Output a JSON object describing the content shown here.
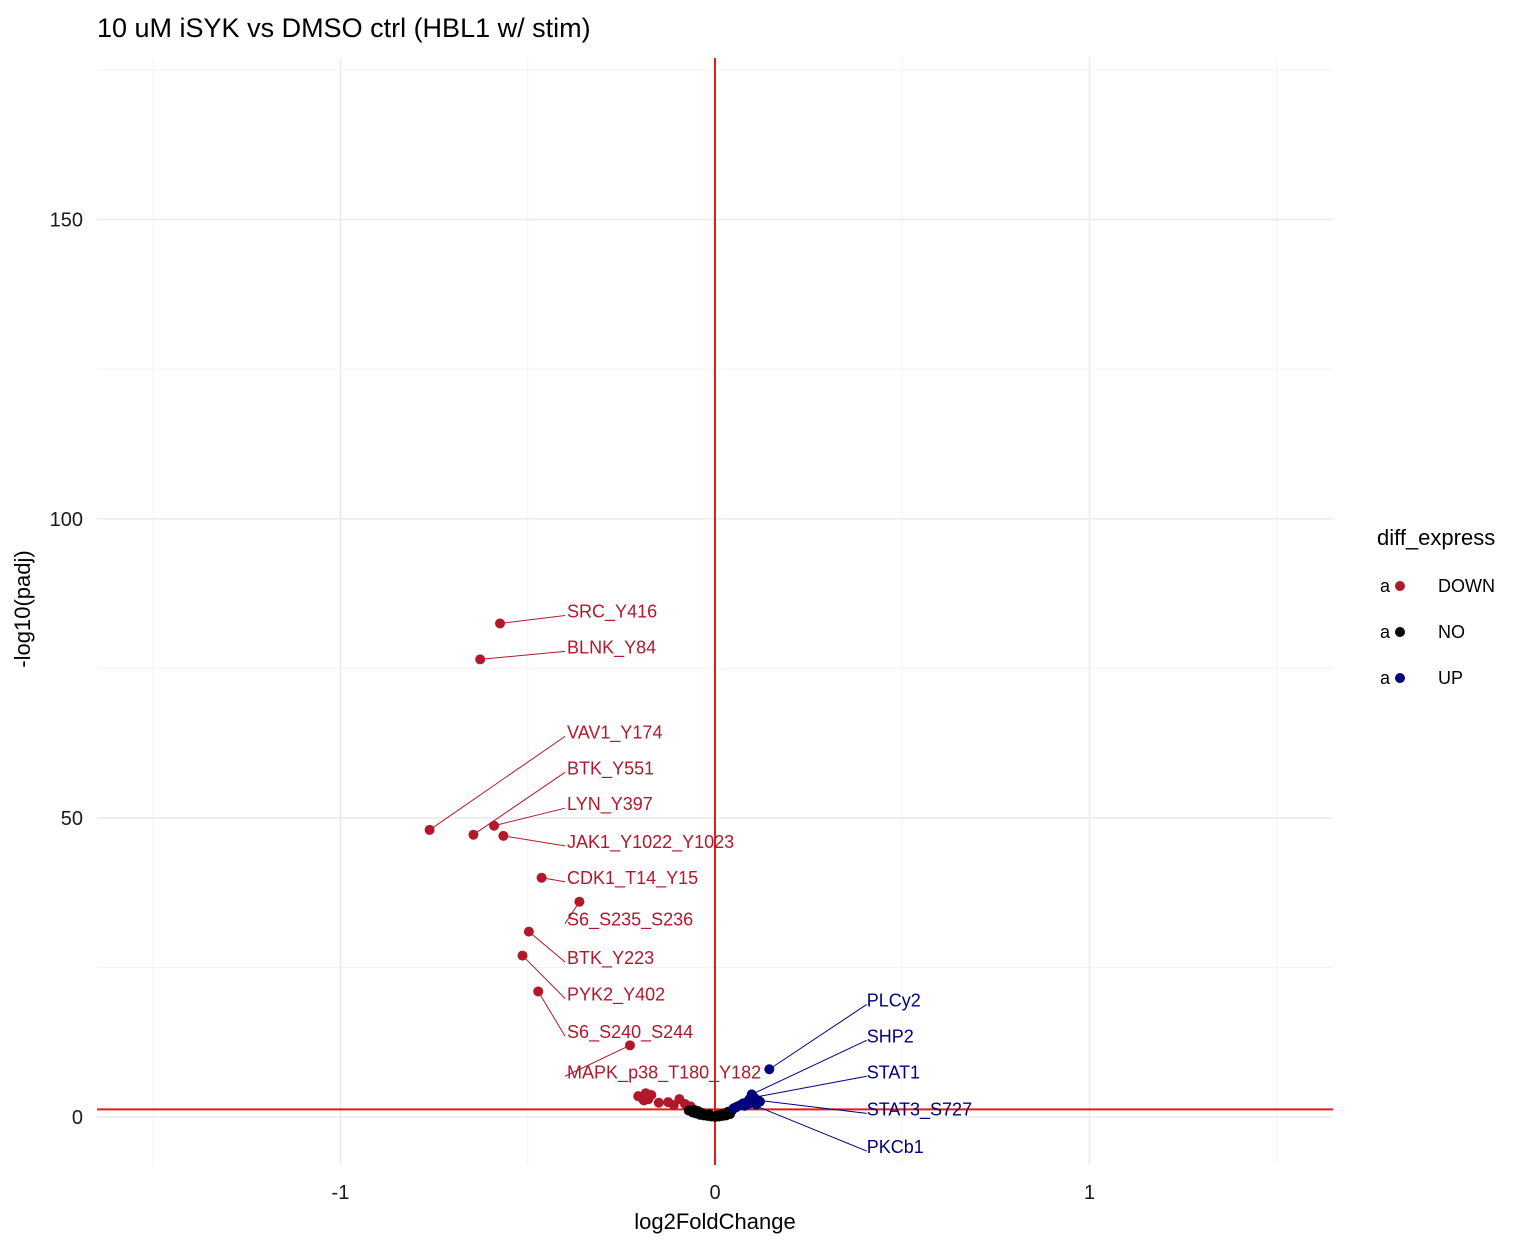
{
  "chart_data": {
    "type": "scatter",
    "title": "10 uM iSYK vs DMSO ctrl (HBL1 w/ stim)",
    "xlabel": "log2FoldChange",
    "ylabel": "-log10(padj)",
    "xlim": [
      -1.65,
      1.65
    ],
    "ylim": [
      -8,
      177
    ],
    "x_ticks": [
      -1,
      0,
      1
    ],
    "x_tick_labels": [
      "-1",
      "0",
      "1"
    ],
    "y_ticks": [
      0,
      50,
      100,
      150
    ],
    "y_tick_labels": [
      "0",
      "50",
      "100",
      "150"
    ],
    "grid": true,
    "reference_lines": {
      "vline_x": 0,
      "hline_y": 1.3,
      "color": "#e31a1c"
    },
    "legend": {
      "title": "diff_express",
      "position": "right",
      "key_glyph": "a",
      "entries": [
        {
          "label": "DOWN",
          "color": "#b2182b"
        },
        {
          "label": "NO",
          "color": "#000000"
        },
        {
          "label": "UP",
          "color": "#00007f"
        }
      ]
    },
    "series": [
      {
        "name": "DOWN",
        "color": "#b2182b",
        "points": [
          {
            "x": -0.574,
            "y": 82.5
          },
          {
            "x": -0.627,
            "y": 76.5
          },
          {
            "x": -0.762,
            "y": 48.0
          },
          {
            "x": -0.645,
            "y": 47.2
          },
          {
            "x": -0.59,
            "y": 48.7
          },
          {
            "x": -0.565,
            "y": 47.0
          },
          {
            "x": -0.463,
            "y": 40.0
          },
          {
            "x": -0.362,
            "y": 36.0
          },
          {
            "x": -0.497,
            "y": 31.0
          },
          {
            "x": -0.514,
            "y": 27.0
          },
          {
            "x": -0.472,
            "y": 21.0
          },
          {
            "x": -0.227,
            "y": 12.0
          },
          {
            "x": -0.185,
            "y": 4.0
          },
          {
            "x": -0.195,
            "y": 3.2
          },
          {
            "x": -0.178,
            "y": 3.0
          },
          {
            "x": -0.205,
            "y": 3.5
          },
          {
            "x": -0.125,
            "y": 2.5
          },
          {
            "x": -0.095,
            "y": 3.0
          },
          {
            "x": -0.08,
            "y": 2.2
          },
          {
            "x": -0.17,
            "y": 3.7
          },
          {
            "x": -0.15,
            "y": 2.4
          },
          {
            "x": -0.11,
            "y": 2.0
          },
          {
            "x": -0.065,
            "y": 1.8
          },
          {
            "x": -0.19,
            "y": 2.8
          }
        ]
      },
      {
        "name": "NO",
        "color": "#000000",
        "points": [
          {
            "x": -0.07,
            "y": 1.1
          },
          {
            "x": -0.06,
            "y": 0.8
          },
          {
            "x": -0.05,
            "y": 0.6
          },
          {
            "x": -0.04,
            "y": 0.4
          },
          {
            "x": -0.03,
            "y": 0.3
          },
          {
            "x": -0.02,
            "y": 0.2
          },
          {
            "x": -0.01,
            "y": 0.1
          },
          {
            "x": 0.0,
            "y": 0.05
          },
          {
            "x": 0.01,
            "y": 0.1
          },
          {
            "x": 0.02,
            "y": 0.2
          },
          {
            "x": 0.03,
            "y": 0.3
          },
          {
            "x": 0.04,
            "y": 0.5
          },
          {
            "x": 0.035,
            "y": 0.9
          },
          {
            "x": -0.055,
            "y": 1.2
          },
          {
            "x": -0.035,
            "y": 0.7
          },
          {
            "x": 0.025,
            "y": 0.6
          },
          {
            "x": 0.015,
            "y": 0.4
          },
          {
            "x": -0.015,
            "y": 0.5
          },
          {
            "x": 0.005,
            "y": 0.3
          },
          {
            "x": -0.045,
            "y": 1.0
          },
          {
            "x": 0.045,
            "y": 1.1
          }
        ]
      },
      {
        "name": "UP",
        "color": "#00007f",
        "points": [
          {
            "x": 0.145,
            "y": 8.0
          },
          {
            "x": 0.098,
            "y": 3.8
          },
          {
            "x": 0.092,
            "y": 3.0
          },
          {
            "x": 0.104,
            "y": 3.3
          },
          {
            "x": 0.12,
            "y": 2.6
          },
          {
            "x": 0.085,
            "y": 2.5
          },
          {
            "x": 0.075,
            "y": 2.3
          },
          {
            "x": 0.068,
            "y": 2.0
          },
          {
            "x": 0.06,
            "y": 1.8
          },
          {
            "x": 0.055,
            "y": 1.6
          },
          {
            "x": 0.11,
            "y": 2.1
          },
          {
            "x": 0.08,
            "y": 1.9
          },
          {
            "x": 0.05,
            "y": 1.5
          },
          {
            "x": 0.09,
            "y": 2.2
          },
          {
            "x": 0.115,
            "y": 2.8
          }
        ]
      }
    ],
    "labels": [
      {
        "text": "SRC_Y416",
        "group": "DOWN",
        "x": -0.574,
        "y": 82.5,
        "lx": -0.395,
        "ly": 84.5
      },
      {
        "text": "BLNK_Y84",
        "group": "DOWN",
        "x": -0.627,
        "y": 76.5,
        "lx": -0.395,
        "ly": 78.5
      },
      {
        "text": "VAV1_Y174",
        "group": "DOWN",
        "x": -0.762,
        "y": 48.0,
        "lx": -0.395,
        "ly": 64.3
      },
      {
        "text": "BTK_Y551",
        "group": "DOWN",
        "x": -0.645,
        "y": 47.2,
        "lx": -0.395,
        "ly": 58.3
      },
      {
        "text": "LYN_Y397",
        "group": "DOWN",
        "x": -0.59,
        "y": 48.7,
        "lx": -0.395,
        "ly": 52.3
      },
      {
        "text": "JAK1_Y1022_Y1023",
        "group": "DOWN",
        "x": -0.565,
        "y": 47.0,
        "lx": -0.395,
        "ly": 46.0
      },
      {
        "text": "CDK1_T14_Y15",
        "group": "DOWN",
        "x": -0.463,
        "y": 40.0,
        "lx": -0.395,
        "ly": 40.0
      },
      {
        "text": "S6_S235_S236",
        "group": "DOWN",
        "x": -0.362,
        "y": 36.0,
        "lx": -0.395,
        "ly": 33.0
      },
      {
        "text": "BTK_Y223",
        "group": "DOWN",
        "x": -0.497,
        "y": 31.0,
        "lx": -0.395,
        "ly": 26.6
      },
      {
        "text": "PYK2_Y402",
        "group": "DOWN",
        "x": -0.514,
        "y": 27.0,
        "lx": -0.395,
        "ly": 20.5
      },
      {
        "text": "S6_S240_S244",
        "group": "DOWN",
        "x": -0.472,
        "y": 21.0,
        "lx": -0.395,
        "ly": 14.2
      },
      {
        "text": "MAPK_p38_T180_Y182",
        "group": "DOWN",
        "x": -0.227,
        "y": 12.0,
        "lx": -0.395,
        "ly": 7.5
      },
      {
        "text": "PLCy2",
        "group": "UP",
        "x": 0.145,
        "y": 8.0,
        "lx": 0.405,
        "ly": 19.5
      },
      {
        "text": "SHP2",
        "group": "UP",
        "x": 0.098,
        "y": 3.8,
        "lx": 0.405,
        "ly": 13.5
      },
      {
        "text": "STAT1",
        "group": "UP",
        "x": 0.104,
        "y": 3.3,
        "lx": 0.405,
        "ly": 7.5
      },
      {
        "text": "STAT3_S727",
        "group": "UP",
        "x": 0.092,
        "y": 3.0,
        "lx": 0.405,
        "ly": 1.3
      },
      {
        "text": "PKCb1",
        "group": "UP",
        "x": 0.085,
        "y": 2.5,
        "lx": 0.405,
        "ly": -5.0
      }
    ]
  }
}
